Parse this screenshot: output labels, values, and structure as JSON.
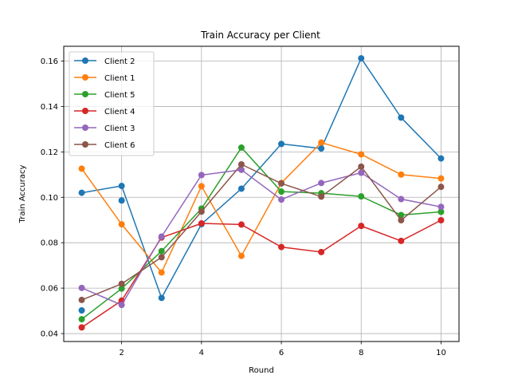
{
  "chart_data": {
    "type": "line",
    "title": "Train Accuracy per Client",
    "xlabel": "Round",
    "ylabel": "Train Accuracy",
    "x": [
      1,
      2,
      3,
      4,
      5,
      6,
      7,
      8,
      9,
      10
    ],
    "xlim": [
      0.55,
      10.45
    ],
    "ylim": [
      0.0365,
      0.1665
    ],
    "xticks": [
      2,
      4,
      6,
      8,
      10
    ],
    "xtick_labels": [
      "2",
      "4",
      "6",
      "8",
      "10"
    ],
    "yticks": [
      0.04,
      0.06,
      0.08,
      0.1,
      0.12,
      0.14,
      0.16
    ],
    "ytick_labels": [
      "0.04",
      "0.06",
      "0.08",
      "0.10",
      "0.12",
      "0.14",
      "0.16"
    ],
    "grid": true,
    "legend_position": "top-left",
    "series": [
      {
        "name": "Client 2",
        "color": "#1f77b4",
        "values": [
          0.102,
          0.105,
          0.0557,
          0.0882,
          0.1038,
          0.1235,
          0.1215,
          0.1612,
          0.1351,
          0.1171
        ]
      },
      {
        "name": "Client 1",
        "color": "#ff7f0e",
        "values": [
          0.1126,
          0.0881,
          0.0669,
          0.1049,
          0.0742,
          0.1063,
          0.1241,
          0.1189,
          0.11,
          0.1083
        ]
      },
      {
        "name": "Client 5",
        "color": "#2ca02c",
        "values": [
          0.0463,
          0.0598,
          0.0763,
          0.095,
          0.1219,
          0.1025,
          0.1018,
          0.1004,
          0.0922,
          0.0936
        ]
      },
      {
        "name": "Client 4",
        "color": "#d62728",
        "values": [
          0.0427,
          0.0545,
          0.0823,
          0.0885,
          0.088,
          0.0781,
          0.0759,
          0.0874,
          0.0808,
          0.0899
        ]
      },
      {
        "name": "Client 3",
        "color": "#9467bd",
        "values": [
          0.0601,
          0.0526,
          0.0827,
          0.1098,
          0.1121,
          0.099,
          0.1063,
          0.1108,
          0.0992,
          0.0958
        ]
      },
      {
        "name": "Client 6",
        "color": "#8c564b",
        "values": [
          0.0548,
          0.0619,
          0.0736,
          0.0937,
          0.1145,
          0.1061,
          0.1003,
          0.1135,
          0.0899,
          0.1046
        ]
      }
    ],
    "extra_points": [
      {
        "series": "Client 2",
        "x": 1,
        "y": 0.0502
      },
      {
        "series": "Client 2",
        "x": 2,
        "y": 0.0986
      }
    ]
  }
}
